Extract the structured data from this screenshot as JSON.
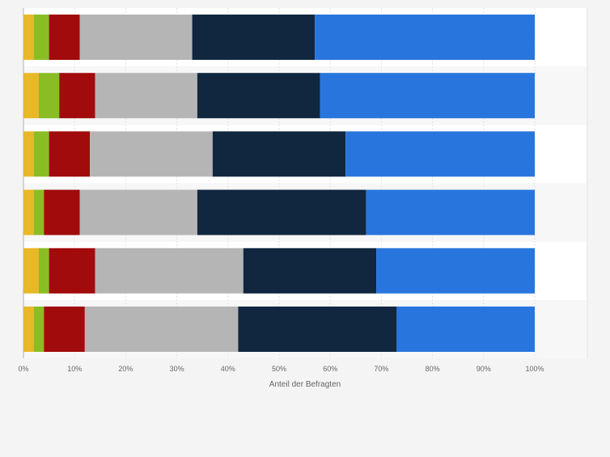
{
  "chart_data": {
    "type": "bar",
    "orientation": "horizontal",
    "stacked": true,
    "xlabel": "Anteil der Befragten",
    "ylabel": "",
    "xlim": [
      0,
      100
    ],
    "x_ticks": [
      "0%",
      "10%",
      "20%",
      "30%",
      "40%",
      "50%",
      "60%",
      "70%",
      "80%",
      "90%",
      "100%"
    ],
    "grid": true,
    "legend": "none",
    "categories": [
      "",
      "",
      "",
      "",
      "",
      ""
    ],
    "series": [
      {
        "color": "#e8b827",
        "values": [
          2,
          3,
          2,
          2,
          3,
          2
        ]
      },
      {
        "color": "#8abd24",
        "values": [
          3,
          4,
          3,
          2,
          2,
          2
        ]
      },
      {
        "color": "#a10b0b",
        "values": [
          6,
          7,
          8,
          7,
          9,
          8
        ]
      },
      {
        "color": "#b5b5b5",
        "values": [
          22,
          20,
          24,
          23,
          29,
          30
        ]
      },
      {
        "color": "#10273f",
        "values": [
          24,
          24,
          26,
          33,
          26,
          31
        ]
      },
      {
        "color": "#2876dd",
        "values": [
          43,
          42,
          37,
          33,
          31,
          27
        ]
      }
    ]
  }
}
